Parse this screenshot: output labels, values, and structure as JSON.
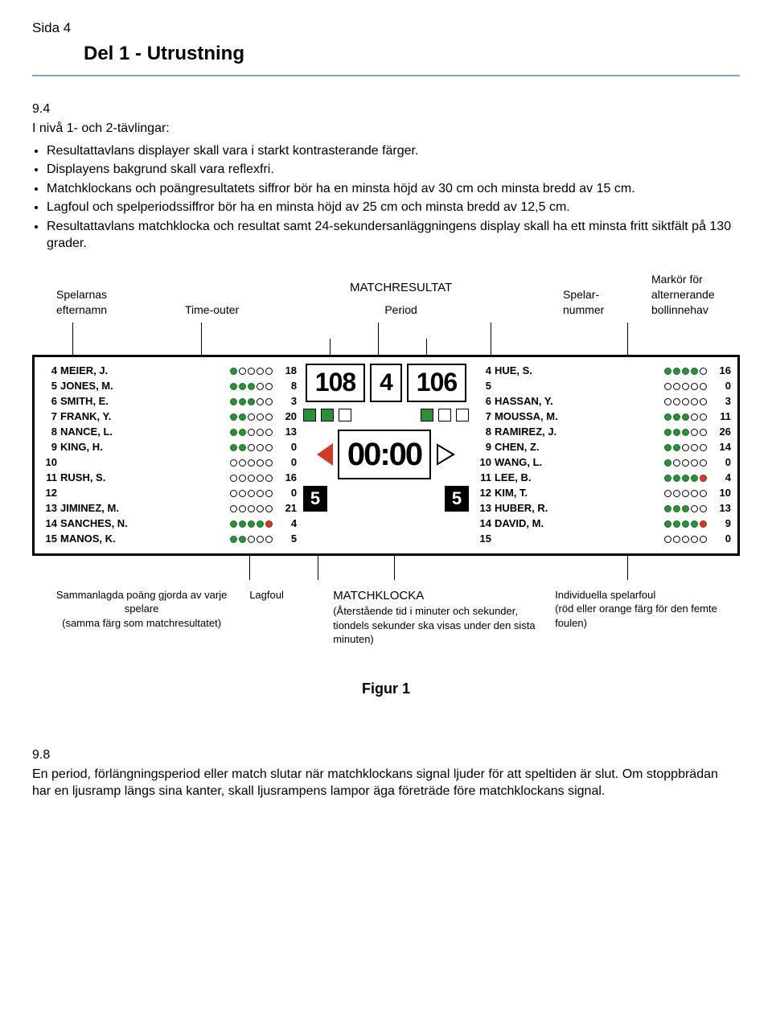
{
  "page_label": "Sida 4",
  "section_title": "Del 1 - Utrustning",
  "rule_number": "9.4",
  "intro": "I nivå 1- och 2-tävlingar:",
  "bullets": [
    "Resultattavlans displayer skall vara i starkt kontrasterande färger.",
    "Displayens bakgrund skall vara reflexfri.",
    "Matchklockans och poängresultatets siffror bör ha en minsta höjd av 30 cm och minsta bredd av 15 cm.",
    "Lagfoul och spelperiodssiffror bör ha en minsta höjd av 25 cm och minsta bredd av 12,5 cm.",
    "Resultattavlans matchklocka och resultat samt 24-sekundersanläggningens display skall ha ett minsta fritt siktfält på 130 grader."
  ],
  "annot_top": {
    "surnames": "Spelarnas efternamn",
    "timeouts": "Time-outer",
    "matchresult": "MATCHRESULTAT",
    "period": "Period",
    "player_no": "Spelar-nummer",
    "poss": "Markör för alternerande bollinnehav"
  },
  "scoreboard": {
    "home_score": "108",
    "away_score": "106",
    "period": "4",
    "clock": "00:00",
    "home_team_fouls": "5",
    "away_team_fouls": "5",
    "home_timeouts": [
      true,
      true,
      false
    ],
    "away_timeouts": [
      true,
      false,
      false
    ],
    "colors": {
      "green": "#2d8f3a",
      "red": "#d03a2a",
      "border": "#000000",
      "bg": "#ffffff"
    },
    "home_roster": [
      {
        "n": "4",
        "name": "MEIER, J.",
        "fouls": [
          "g",
          "e",
          "e",
          "e",
          "e"
        ],
        "pts": "18"
      },
      {
        "n": "5",
        "name": "JONES, M.",
        "fouls": [
          "g",
          "g",
          "g",
          "e",
          "e"
        ],
        "pts": "8"
      },
      {
        "n": "6",
        "name": "SMITH, E.",
        "fouls": [
          "g",
          "g",
          "g",
          "e",
          "e"
        ],
        "pts": "3"
      },
      {
        "n": "7",
        "name": "FRANK, Y.",
        "fouls": [
          "g",
          "g",
          "e",
          "e",
          "e"
        ],
        "pts": "20"
      },
      {
        "n": "8",
        "name": "NANCE, L.",
        "fouls": [
          "g",
          "g",
          "e",
          "e",
          "e"
        ],
        "pts": "13"
      },
      {
        "n": "9",
        "name": "KING, H.",
        "fouls": [
          "g",
          "g",
          "e",
          "e",
          "e"
        ],
        "pts": "0"
      },
      {
        "n": "10",
        "name": "",
        "fouls": [
          "e",
          "e",
          "e",
          "e",
          "e"
        ],
        "pts": "0"
      },
      {
        "n": "11",
        "name": "RUSH, S.",
        "fouls": [
          "e",
          "e",
          "e",
          "e",
          "e"
        ],
        "pts": "16"
      },
      {
        "n": "12",
        "name": "",
        "fouls": [
          "e",
          "e",
          "e",
          "e",
          "e"
        ],
        "pts": "0"
      },
      {
        "n": "13",
        "name": "JIMINEZ, M.",
        "fouls": [
          "e",
          "e",
          "e",
          "e",
          "e"
        ],
        "pts": "21"
      },
      {
        "n": "14",
        "name": "SANCHES, N.",
        "fouls": [
          "g",
          "g",
          "g",
          "g",
          "r"
        ],
        "pts": "4"
      },
      {
        "n": "15",
        "name": "MANOS, K.",
        "fouls": [
          "g",
          "g",
          "e",
          "e",
          "e"
        ],
        "pts": "5"
      }
    ],
    "away_roster": [
      {
        "n": "4",
        "name": "HUE, S.",
        "fouls": [
          "g",
          "g",
          "g",
          "g",
          "e"
        ],
        "pts": "16"
      },
      {
        "n": "5",
        "name": "",
        "fouls": [
          "e",
          "e",
          "e",
          "e",
          "e"
        ],
        "pts": "0"
      },
      {
        "n": "6",
        "name": "HASSAN, Y.",
        "fouls": [
          "e",
          "e",
          "e",
          "e",
          "e"
        ],
        "pts": "3"
      },
      {
        "n": "7",
        "name": "MOUSSA, M.",
        "fouls": [
          "g",
          "g",
          "g",
          "e",
          "e"
        ],
        "pts": "11"
      },
      {
        "n": "8",
        "name": "RAMIREZ, J.",
        "fouls": [
          "g",
          "g",
          "g",
          "e",
          "e"
        ],
        "pts": "26"
      },
      {
        "n": "9",
        "name": "CHEN, Z.",
        "fouls": [
          "g",
          "g",
          "e",
          "e",
          "e"
        ],
        "pts": "14"
      },
      {
        "n": "10",
        "name": "WANG, L.",
        "fouls": [
          "g",
          "e",
          "e",
          "e",
          "e"
        ],
        "pts": "0"
      },
      {
        "n": "11",
        "name": "LEE, B.",
        "fouls": [
          "g",
          "g",
          "g",
          "g",
          "r"
        ],
        "pts": "4"
      },
      {
        "n": "12",
        "name": "KIM, T.",
        "fouls": [
          "e",
          "e",
          "e",
          "e",
          "e"
        ],
        "pts": "10"
      },
      {
        "n": "13",
        "name": "HUBER, R.",
        "fouls": [
          "g",
          "g",
          "g",
          "e",
          "e"
        ],
        "pts": "13"
      },
      {
        "n": "14",
        "name": "DAVID, M.",
        "fouls": [
          "g",
          "g",
          "g",
          "g",
          "r"
        ],
        "pts": "9"
      },
      {
        "n": "15",
        "name": "",
        "fouls": [
          "e",
          "e",
          "e",
          "e",
          "e"
        ],
        "pts": "0"
      }
    ]
  },
  "annot_bottom": {
    "col1_title": "Sammanlagda poäng gjorda av varje spelare",
    "col1_sub": "(samma färg som matchresultatet)",
    "col2_title": "Lagfoul",
    "col3_title": "MATCHKLOCKA",
    "col3_sub": "(Återstående tid i minuter och sekunder, tiondels sekunder ska visas under den sista minuten)",
    "col4_title": "Individuella spelarfoul",
    "col4_sub": "(röd eller orange färg för den femte foulen)"
  },
  "figure_caption": "Figur 1",
  "rule98_number": "9.8",
  "rule98_text": "En period, förlängningsperiod eller match slutar när matchklockans signal ljuder för att speltiden är slut. Om stoppbrädan har en ljusramp längs sina kanter, skall ljusrampens lampor äga företräde före matchklockans signal."
}
